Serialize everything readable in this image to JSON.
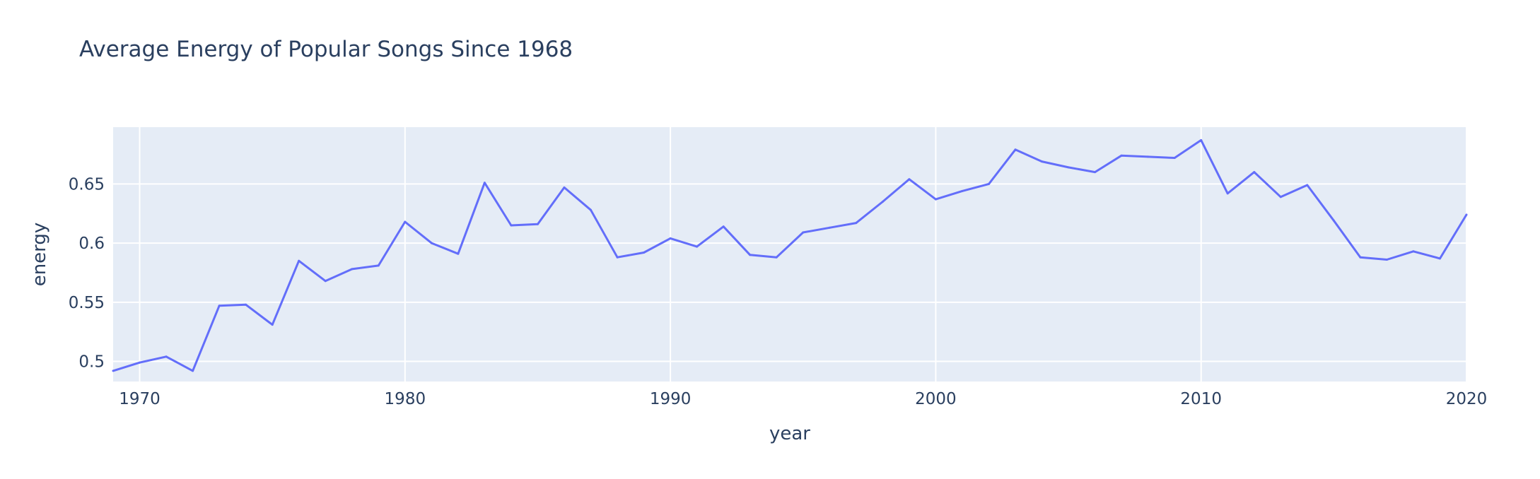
{
  "chart_data": {
    "type": "line",
    "title": "Average Energy of Popular Songs Since 1968",
    "xlabel": "year",
    "ylabel": "energy",
    "xlim": [
      1969,
      2020
    ],
    "ylim": [
      0.483,
      0.698
    ],
    "x_ticks": [
      1970,
      1980,
      1990,
      2000,
      2010,
      2020
    ],
    "y_ticks": [
      0.5,
      0.55,
      0.6,
      0.65
    ],
    "y_tick_labels": [
      "0.5",
      "0.55",
      "0.6",
      "0.65"
    ],
    "grid": true,
    "colors": {
      "line": "#636efa",
      "plot_bg": "#e5ecf6",
      "grid": "#ffffff",
      "text": "#2a3f5f"
    },
    "series": [
      {
        "x": [
          1969,
          1970,
          1971,
          1972,
          1973,
          1974,
          1975,
          1976,
          1977,
          1978,
          1979,
          1980,
          1981,
          1982,
          1983,
          1984,
          1985,
          1986,
          1987,
          1988,
          1989,
          1990,
          1991,
          1992,
          1993,
          1994,
          1995,
          1996,
          1997,
          1998,
          1999,
          2000,
          2001,
          2002,
          2003,
          2004,
          2005,
          2006,
          2007,
          2008,
          2009,
          2010,
          2011,
          2012,
          2013,
          2014,
          2015,
          2016,
          2017,
          2018,
          2019,
          2020
        ],
        "y": [
          0.492,
          0.499,
          0.504,
          0.492,
          0.547,
          0.548,
          0.531,
          0.585,
          0.568,
          0.578,
          0.581,
          0.618,
          0.6,
          0.591,
          0.651,
          0.615,
          0.616,
          0.647,
          0.628,
          0.588,
          0.592,
          0.604,
          0.597,
          0.614,
          0.59,
          0.588,
          0.609,
          0.613,
          0.617,
          0.635,
          0.654,
          0.637,
          0.644,
          0.65,
          0.679,
          0.669,
          0.664,
          0.66,
          0.674,
          0.673,
          0.672,
          0.687,
          0.642,
          0.66,
          0.639,
          0.649,
          0.619,
          0.588,
          0.586,
          0.593,
          0.587,
          0.624
        ]
      }
    ]
  }
}
